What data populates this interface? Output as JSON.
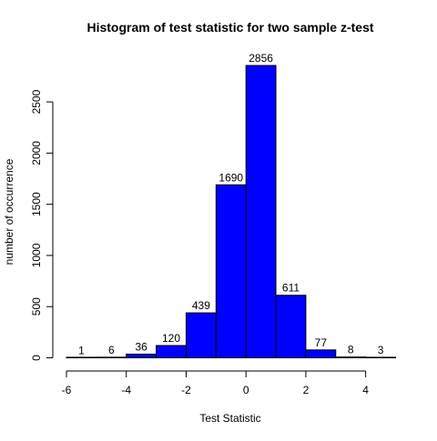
{
  "chart_data": {
    "type": "bar",
    "title": "Histogram of test statistic for two sample z-test",
    "xlabel": "Test Statistic",
    "ylabel": "number of occurrence",
    "xlim": [
      -6,
      5
    ],
    "ylim": [
      0,
      2856
    ],
    "x_ticks": [
      -6,
      -4,
      -2,
      0,
      2,
      4
    ],
    "y_ticks": [
      0,
      500,
      1000,
      1500,
      2000,
      2500
    ],
    "bins": [
      {
        "start": -6,
        "end": -5,
        "value": 1
      },
      {
        "start": -5,
        "end": -4,
        "value": 6
      },
      {
        "start": -4,
        "end": -3,
        "value": 36
      },
      {
        "start": -3,
        "end": -2,
        "value": 120
      },
      {
        "start": -2,
        "end": -1,
        "value": 439
      },
      {
        "start": -1,
        "end": 0,
        "value": 1690
      },
      {
        "start": 0,
        "end": 1,
        "value": 2856
      },
      {
        "start": 1,
        "end": 2,
        "value": 611
      },
      {
        "start": 2,
        "end": 3,
        "value": 77
      },
      {
        "start": 3,
        "end": 4,
        "value": 8
      },
      {
        "start": 4,
        "end": 5,
        "value": 3
      }
    ],
    "bar_color": "#0000FF",
    "bar_edge_color": "#000000",
    "grid": false,
    "legend": "none"
  }
}
